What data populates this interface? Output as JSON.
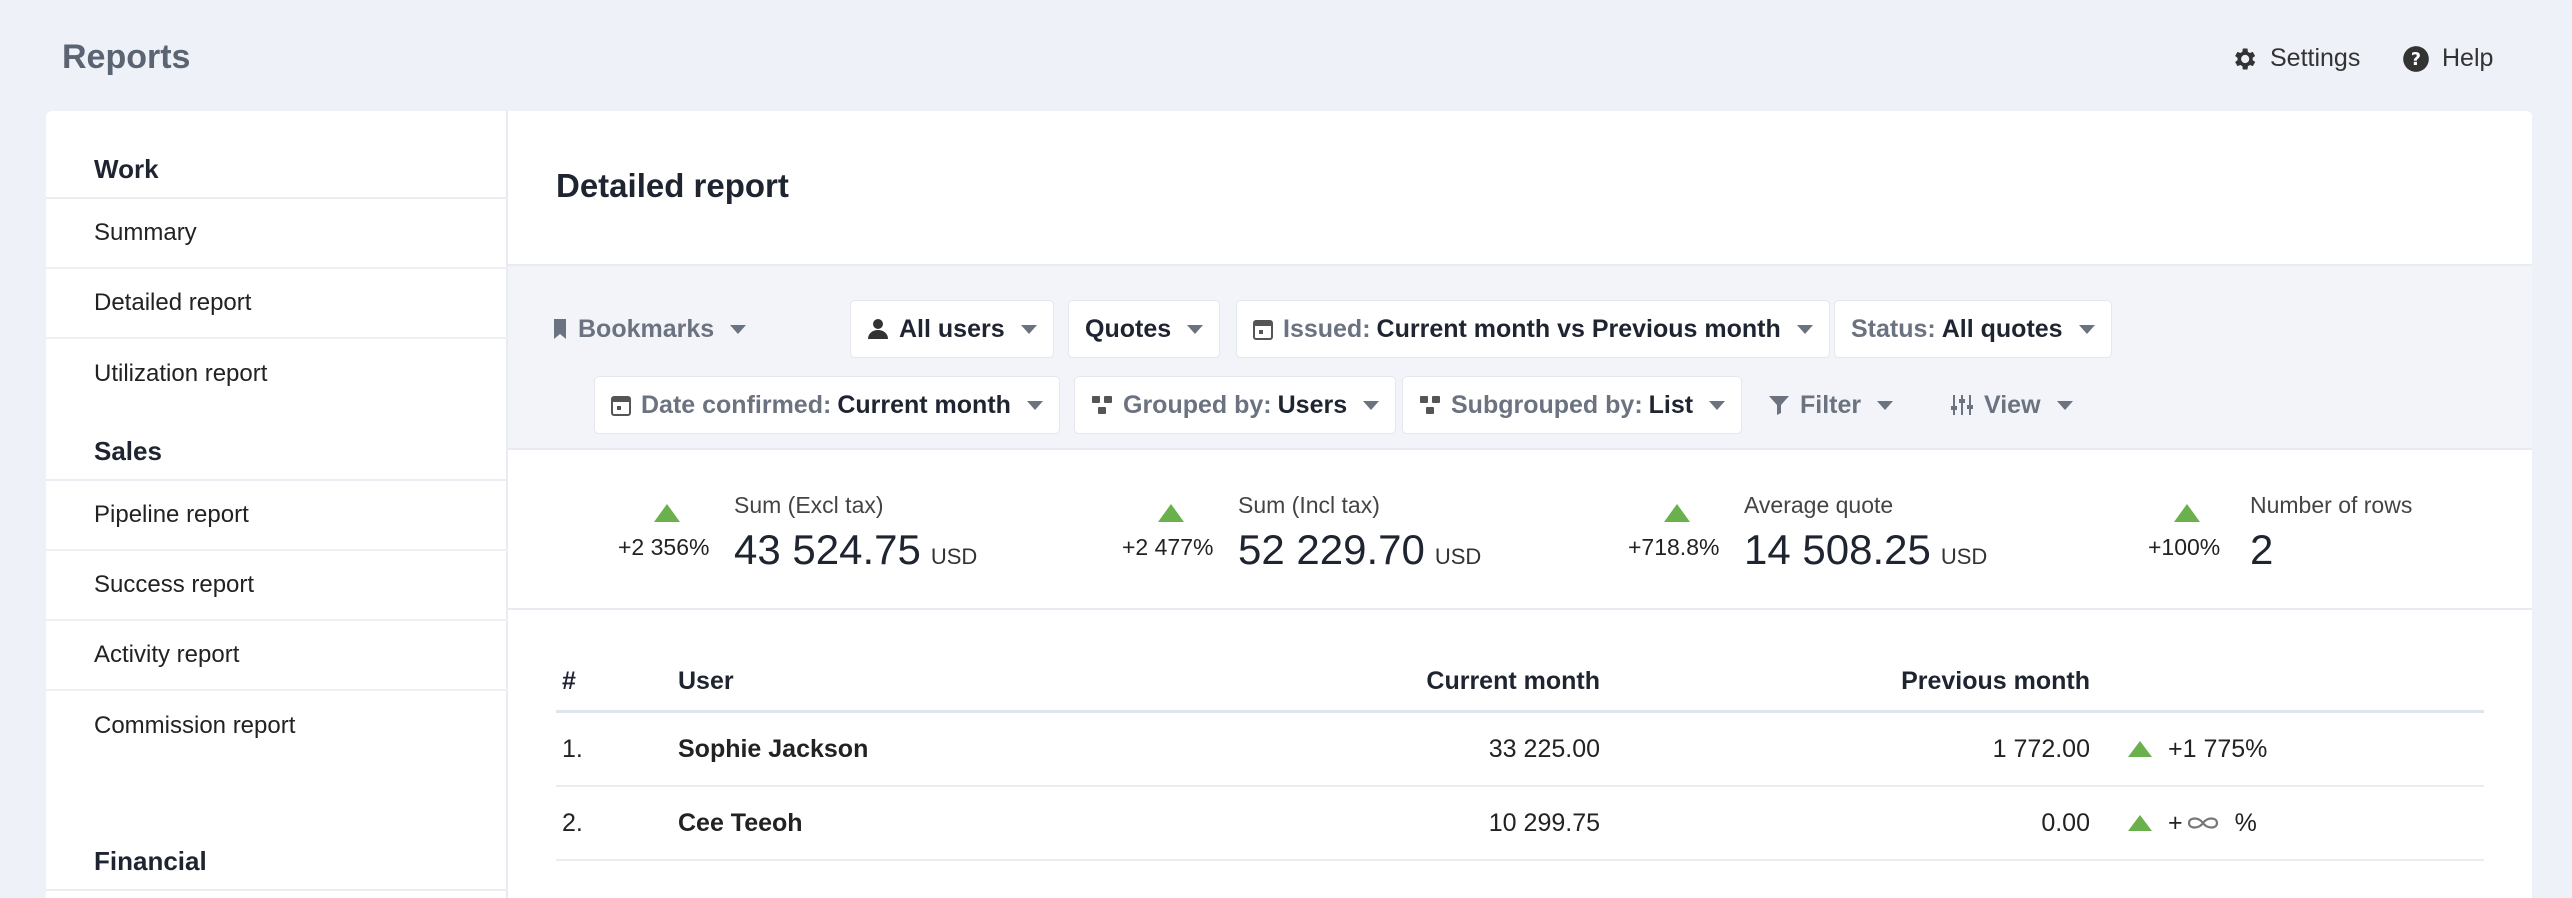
{
  "app": {
    "title": "Reports"
  },
  "topnav": {
    "settings": "Settings",
    "help": "Help"
  },
  "sidebar": {
    "groups": [
      {
        "title": "Work",
        "items": [
          "Summary",
          "Detailed report",
          "Utilization report"
        ]
      },
      {
        "title": "Sales",
        "items": [
          "Pipeline report",
          "Success report",
          "Activity report",
          "Commission report"
        ]
      },
      {
        "title": "Financial",
        "items": []
      }
    ]
  },
  "main": {
    "title": "Detailed report"
  },
  "filters": {
    "bookmarks": "Bookmarks",
    "users": "All users",
    "doc_type": "Quotes",
    "issued_label": "Issued:",
    "issued_value": "Current month vs Previous month",
    "status_label": "Status:",
    "status_value": "All quotes",
    "date_confirmed_label": "Date confirmed:",
    "date_confirmed_value": "Current month",
    "grouped_label": "Grouped by:",
    "grouped_value": "Users",
    "subgrouped_label": "Subgrouped by:",
    "subgrouped_value": "List",
    "filter": "Filter",
    "view": "View"
  },
  "stats": [
    {
      "label": "Sum (Excl tax)",
      "change": "+2 356%",
      "value": "43 524.75",
      "currency": "USD"
    },
    {
      "label": "Sum (Incl tax)",
      "change": "+2 477%",
      "value": "52 229.70",
      "currency": "USD"
    },
    {
      "label": "Average quote",
      "change": "+718.8%",
      "value": "14 508.25",
      "currency": "USD"
    },
    {
      "label": "Number of rows",
      "change": "+100%",
      "value": "2",
      "currency": ""
    }
  ],
  "table": {
    "headers": {
      "index": "#",
      "user": "User",
      "current": "Current month",
      "previous": "Previous month"
    },
    "rows": [
      {
        "index": "1.",
        "user": "Sophie Jackson",
        "current": "33 225.00",
        "previous": "1 772.00",
        "change": "+1 775%"
      },
      {
        "index": "2.",
        "user": "Cee Teeoh",
        "current": "10 299.75",
        "previous": "0.00",
        "change_prefix": "+",
        "change_suffix": "%"
      }
    ]
  },
  "colors": {
    "accent_up": "#6ab04c",
    "background": "#eef1f8"
  },
  "icons": {
    "settings": "gear-icon",
    "help": "help-circle-icon",
    "bookmark": "bookmark-icon",
    "user": "user-icon",
    "calendar": "calendar-icon",
    "group": "group-icon",
    "filter": "filter-icon",
    "view": "sliders-icon"
  }
}
